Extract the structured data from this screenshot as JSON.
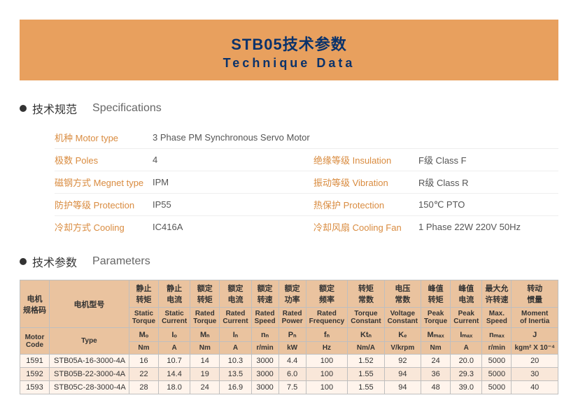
{
  "banner": {
    "title_cn": "STB05技术参数",
    "title_en": "Technique Data",
    "bg_color": "#e8a05e",
    "fg_color": "#0a326b"
  },
  "sections": {
    "spec_hdr_cn": "技术规范",
    "spec_hdr_en": "Specifications",
    "param_hdr_cn": "技术参数",
    "param_hdr_en": "Parameters"
  },
  "specs": {
    "motor_type_label": "机种 Motor type",
    "motor_type_value": "3 Phase PM Synchronous Servo Motor",
    "poles_label": "极数 Poles",
    "poles_value": "4",
    "insulation_label": "绝缘等级 Insulation",
    "insulation_value": "F级  Class F",
    "magnet_label": "磁钢方式 Megnet type",
    "magnet_value": "IPM",
    "vibration_label": "振动等级 Vibration",
    "vibration_value": "R级  Class R",
    "protection_label": "防护等级 Protection",
    "protection_value": "IP55",
    "thermal_label": "热保护 Protection",
    "thermal_value": "150℃ PTO",
    "cooling_label": "冷却方式 Cooling",
    "cooling_value": "IC416A",
    "fan_label": "冷却风扇 Cooling Fan",
    "fan_value": "1 Phase  22W  220V  50Hz"
  },
  "param_headers": {
    "motor_code_cn": "电机\n规格码",
    "motor_code_en": "Motor\nCode",
    "type_cn": "电机型号",
    "type_en": "Type",
    "cols": [
      {
        "cn": "静止\n转矩",
        "en": "Static\nTorque",
        "sym": "Mₒ",
        "unit": "Nm"
      },
      {
        "cn": "静止\n电流",
        "en": "Static\nCurrent",
        "sym": "Iₒ",
        "unit": "A"
      },
      {
        "cn": "额定\n转矩",
        "en": "Rated\nTorque",
        "sym": "Mₙ",
        "unit": "Nm"
      },
      {
        "cn": "额定\n电流",
        "en": "Rated\nCurrent",
        "sym": "Iₙ",
        "unit": "A"
      },
      {
        "cn": "额定\n转速",
        "en": "Rated\nSpeed",
        "sym": "nₙ",
        "unit": "r/min"
      },
      {
        "cn": "额定\n功率",
        "en": "Rated\nPower",
        "sym": "Pₙ",
        "unit": "kW"
      },
      {
        "cn": "额定\n频率",
        "en": "Rated\nFrequency",
        "sym": "fₙ",
        "unit": "Hz"
      },
      {
        "cn": "转矩\n常数",
        "en": "Torque\nConstant",
        "sym": "Ktₙ",
        "unit": "Nm/A"
      },
      {
        "cn": "电压\n常数",
        "en": "Voltage\nConstant",
        "sym": "Kₑ",
        "unit": "V/krpm"
      },
      {
        "cn": "峰值\n转矩",
        "en": "Peak\nTorque",
        "sym": "Mₘₐₓ",
        "unit": "Nm"
      },
      {
        "cn": "峰值\n电流",
        "en": "Peak\nCurrent",
        "sym": "Iₘₐₓ",
        "unit": "A"
      },
      {
        "cn": "最大允\n许转速",
        "en": "Max.\nSpeed",
        "sym": "nₘₐₓ",
        "unit": "r/min"
      },
      {
        "cn": "转动\n惯量",
        "en": "Moment\nof Inertia",
        "sym": "J",
        "unit": "kgm² X 10⁻⁴"
      }
    ]
  },
  "rows": [
    {
      "code": "1591",
      "type": "STB05A-16-3000-4A",
      "vals": [
        "16",
        "10.7",
        "14",
        "10.3",
        "3000",
        "4.4",
        "100",
        "1.52",
        "92",
        "24",
        "20.0",
        "5000",
        "20"
      ]
    },
    {
      "code": "1592",
      "type": "STB05B-22-3000-4A",
      "vals": [
        "22",
        "14.4",
        "19",
        "13.5",
        "3000",
        "6.0",
        "100",
        "1.55",
        "94",
        "36",
        "29.3",
        "5000",
        "30"
      ]
    },
    {
      "code": "1593",
      "type": "STB05C-28-3000-4A",
      "vals": [
        "28",
        "18.0",
        "24",
        "16.9",
        "3000",
        "7.5",
        "100",
        "1.55",
        "94",
        "48",
        "39.0",
        "5000",
        "40"
      ]
    }
  ],
  "colors": {
    "label_orange": "#d98b3f",
    "header_bg": "#eac39f",
    "row_even": "#fff4ec",
    "row_odd": "#f9e7d9",
    "border": "#bfbfbf"
  }
}
